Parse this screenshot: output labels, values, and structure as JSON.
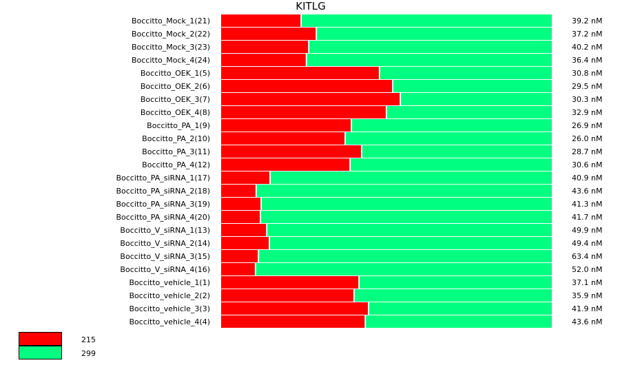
{
  "chart_data": {
    "type": "bar",
    "orientation": "horizontal",
    "stacked": "percent",
    "title": "KITLG",
    "categories": [
      "Boccitto_Mock_1(21)",
      "Boccitto_Mock_2(22)",
      "Boccitto_Mock_3(23)",
      "Boccitto_Mock_4(24)",
      "Boccitto_OEK_1(5)",
      "Boccitto_OEK_2(6)",
      "Boccitto_OEK_3(7)",
      "Boccitto_OEK_4(8)",
      "Boccitto_PA_1(9)",
      "Boccitto_PA_2(10)",
      "Boccitto_PA_3(11)",
      "Boccitto_PA_4(12)",
      "Boccitto_PA_siRNA_1(17)",
      "Boccitto_PA_siRNA_2(18)",
      "Boccitto_PA_siRNA_3(19)",
      "Boccitto_PA_siRNA_4(20)",
      "Boccitto_V_siRNA_1(13)",
      "Boccitto_V_siRNA_2(14)",
      "Boccitto_V_siRNA_3(15)",
      "Boccitto_V_siRNA_4(16)",
      "Boccitto_vehicle_1(1)",
      "Boccitto_vehicle_2(2)",
      "Boccitto_vehicle_3(3)",
      "Boccitto_vehicle_4(4)"
    ],
    "series": [
      {
        "name": "215",
        "color": "#ff0000",
        "values": [
          0.244,
          0.29,
          0.267,
          0.26,
          0.481,
          0.521,
          0.544,
          0.502,
          0.396,
          0.377,
          0.427,
          0.392,
          0.15,
          0.108,
          0.123,
          0.121,
          0.14,
          0.148,
          0.115,
          0.106,
          0.419,
          0.404,
          0.448,
          0.438
        ]
      },
      {
        "name": "299",
        "color": "#00ff80",
        "values": [
          0.756,
          0.71,
          0.733,
          0.74,
          0.519,
          0.479,
          0.456,
          0.498,
          0.604,
          0.623,
          0.573,
          0.608,
          0.85,
          0.892,
          0.877,
          0.879,
          0.86,
          0.852,
          0.885,
          0.894,
          0.581,
          0.596,
          0.552,
          0.562
        ]
      }
    ],
    "right_labels": [
      "39.2 nM",
      "37.2 nM",
      "40.2 nM",
      "36.4 nM",
      "30.8 nM",
      "29.5 nM",
      "30.3 nM",
      "32.9 nM",
      "26.9 nM",
      "26.0 nM",
      "28.7 nM",
      "30.6 nM",
      "40.9 nM",
      "43.6 nM",
      "41.3 nM",
      "41.7 nM",
      "49.9 nM",
      "49.4 nM",
      "63.4 nM",
      "52.0 nM",
      "37.1 nM",
      "35.9 nM",
      "41.9 nM",
      "43.6 nM"
    ],
    "xlim": [
      0,
      1
    ],
    "grid": false,
    "legend": "bottom-left"
  }
}
